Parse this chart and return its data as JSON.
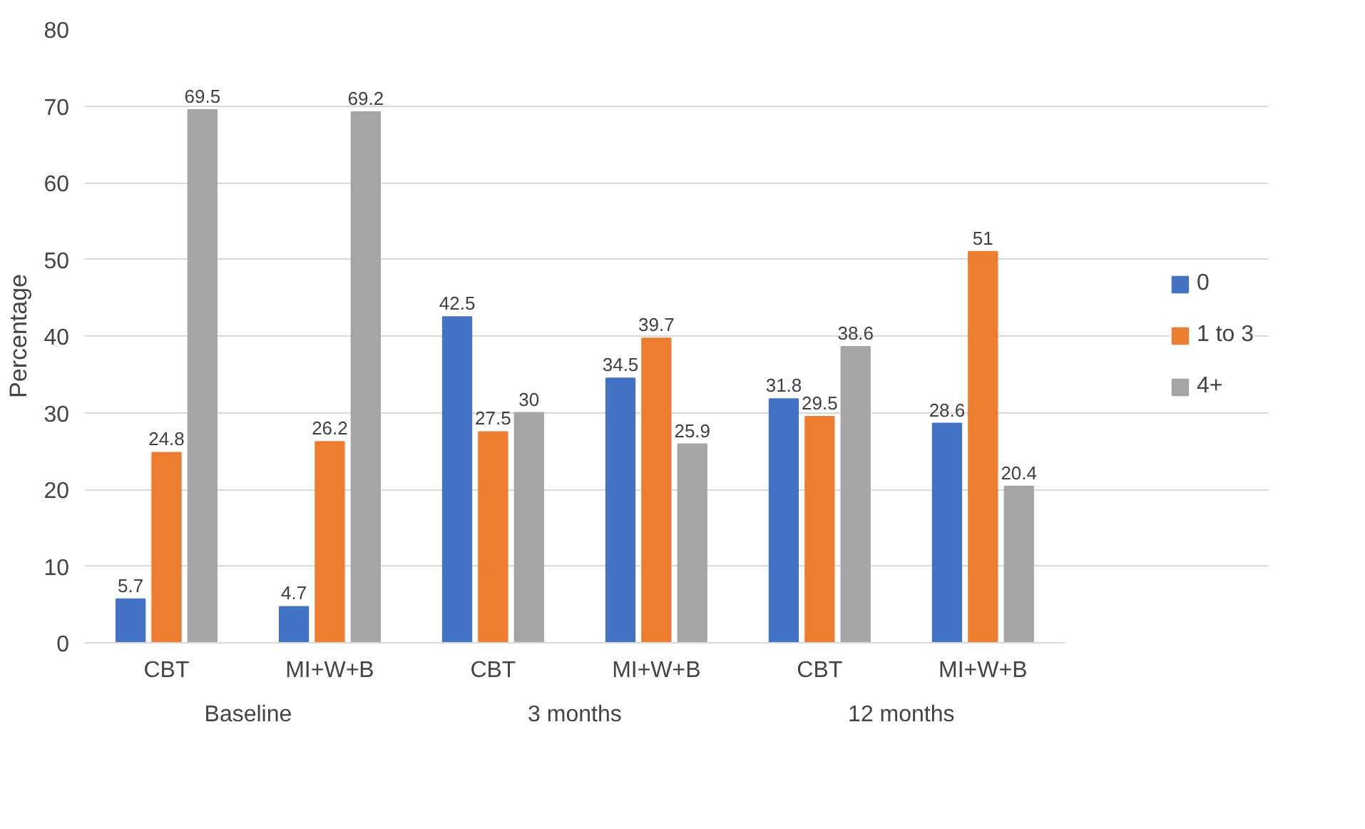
{
  "chart_data": {
    "type": "bar",
    "ylabel": "Percentage",
    "categories": [
      "CBT",
      "MI+W+B",
      "CBT",
      "MI+W+B",
      "CBT",
      "MI+W+B"
    ],
    "annotations": [
      "Baseline",
      "3 months",
      "12 months"
    ],
    "series": [
      {
        "name": "0",
        "color": "#4472c4",
        "values": [
          5.7,
          4.7,
          42.5,
          34.5,
          31.8,
          28.6
        ]
      },
      {
        "name": "1 to 3",
        "color": "#ed7d31",
        "values": [
          24.8,
          26.2,
          27.5,
          39.7,
          29.5,
          51
        ]
      },
      {
        "name": "4+",
        "color": "#a5a5a5",
        "values": [
          69.5,
          69.2,
          30,
          25.9,
          38.6,
          20.4
        ]
      }
    ],
    "ylim": [
      0,
      80
    ],
    "yticks": [
      0,
      10,
      20,
      30,
      40,
      50,
      60,
      70,
      80
    ],
    "grid": "y",
    "legend": "right",
    "data_labels": true
  }
}
